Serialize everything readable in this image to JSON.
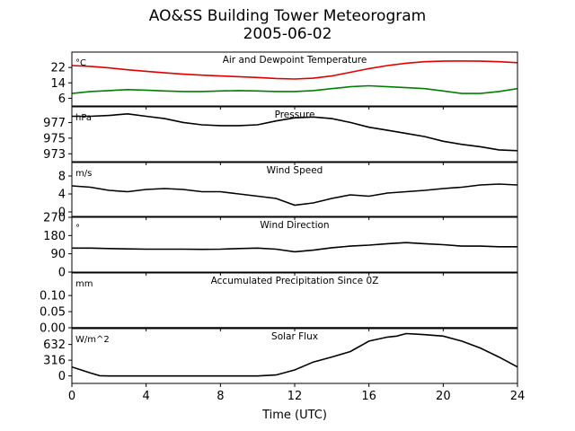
{
  "figure": {
    "title_line1": "AO&SS Building Tower Meteorogram",
    "title_line2": "2005-06-02",
    "xlabel": "Time (UTC)"
  },
  "chart_data": [
    {
      "type": "line",
      "title": "Air and Dewpoint Temperature",
      "unit": "°C",
      "xlim": [
        0,
        24
      ],
      "ylim": [
        2,
        30
      ],
      "yticks": [
        6,
        14,
        22
      ],
      "series": [
        {
          "color": "#e00000",
          "x": [
            0,
            1,
            2,
            3,
            4,
            5,
            6,
            7,
            8,
            9,
            10,
            11,
            12,
            13,
            14,
            15,
            16,
            17,
            18,
            19,
            20,
            21,
            22,
            23,
            24
          ],
          "y": [
            23,
            22.6,
            21.8,
            20.8,
            20.0,
            19.2,
            18.5,
            18.0,
            17.6,
            17.2,
            16.8,
            16.3,
            16.0,
            16.4,
            17.6,
            19.5,
            21.4,
            23.0,
            24.2,
            25.0,
            25.3,
            25.4,
            25.3,
            25.0,
            24.5
          ]
        },
        {
          "color": "#008000",
          "x": [
            0,
            1,
            2,
            3,
            4,
            5,
            6,
            7,
            8,
            9,
            10,
            11,
            12,
            13,
            14,
            15,
            16,
            17,
            18,
            19,
            20,
            21,
            22,
            23,
            24
          ],
          "y": [
            8.5,
            9.5,
            10.0,
            10.5,
            10.2,
            9.8,
            9.5,
            9.5,
            9.8,
            10.0,
            9.8,
            9.5,
            9.5,
            10.0,
            11.0,
            12.0,
            12.5,
            12.0,
            11.5,
            11.0,
            9.8,
            8.5,
            8.5,
            9.5,
            11.0
          ]
        }
      ]
    },
    {
      "type": "line",
      "title": "Pressure",
      "unit": "hPa",
      "xlim": [
        0,
        24
      ],
      "ylim": [
        972,
        979
      ],
      "yticks": [
        973,
        975,
        977
      ],
      "series": [
        {
          "color": "#000000",
          "x": [
            0,
            1,
            2,
            3,
            4,
            5,
            6,
            7,
            8,
            9,
            10,
            11,
            12,
            13,
            14,
            15,
            16,
            17,
            18,
            19,
            20,
            21,
            22,
            23,
            24
          ],
          "y": [
            977.8,
            977.8,
            977.9,
            978.1,
            977.8,
            977.5,
            977.0,
            976.7,
            976.6,
            976.6,
            976.7,
            977.2,
            977.6,
            977.7,
            977.5,
            977.0,
            976.4,
            976.0,
            975.6,
            975.2,
            974.6,
            974.2,
            973.9,
            973.5,
            973.4
          ]
        }
      ]
    },
    {
      "type": "line",
      "title": "Wind Speed",
      "unit": "m/s",
      "xlim": [
        0,
        24
      ],
      "ylim": [
        -1,
        11
      ],
      "yticks": [
        0,
        4,
        8
      ],
      "series": [
        {
          "color": "#000000",
          "x": [
            0,
            1,
            2,
            3,
            4,
            5,
            6,
            7,
            8,
            9,
            10,
            11,
            12,
            13,
            14,
            15,
            16,
            17,
            18,
            19,
            20,
            21,
            22,
            23,
            24
          ],
          "y": [
            5.8,
            5.5,
            4.8,
            4.5,
            5.0,
            5.2,
            5.0,
            4.5,
            4.5,
            4.0,
            3.5,
            3.0,
            1.5,
            2.0,
            3.0,
            3.8,
            3.5,
            4.2,
            4.5,
            4.8,
            5.2,
            5.5,
            6.0,
            6.2,
            6.0
          ]
        }
      ]
    },
    {
      "type": "line",
      "title": "Wind Direction",
      "unit": "°",
      "xlim": [
        0,
        24
      ],
      "ylim": [
        0,
        270
      ],
      "yticks": [
        0,
        90,
        180,
        270
      ],
      "series": [
        {
          "color": "#000000",
          "x": [
            0,
            1,
            2,
            3,
            4,
            5,
            6,
            7,
            8,
            9,
            10,
            11,
            12,
            13,
            14,
            15,
            16,
            17,
            18,
            19,
            20,
            21,
            22,
            23,
            24
          ],
          "y": [
            118,
            118,
            116,
            114,
            113,
            113,
            113,
            112,
            113,
            116,
            118,
            113,
            100,
            108,
            120,
            128,
            133,
            140,
            145,
            140,
            135,
            128,
            128,
            125,
            125
          ]
        }
      ]
    },
    {
      "type": "line",
      "title": "Accumulated Precipitation Since 0Z",
      "unit": "mm",
      "xlim": [
        0,
        24
      ],
      "ylim": [
        0,
        0.17
      ],
      "yticks": [
        0.0,
        0.05,
        0.1
      ],
      "series": [
        {
          "color": "#000000",
          "x": [
            0,
            24
          ],
          "y": [
            0,
            0
          ]
        }
      ]
    },
    {
      "type": "line",
      "title": "Solar Flux",
      "unit": "W/m^2",
      "xlim": [
        0,
        24
      ],
      "ylim": [
        -150,
        950
      ],
      "yticks": [
        0,
        316,
        632
      ],
      "series": [
        {
          "color": "#000000",
          "x": [
            0,
            0.5,
            1,
            1.5,
            2,
            4,
            6,
            8,
            10,
            11,
            12,
            13,
            14,
            15,
            16,
            16.5,
            17,
            17.5,
            18,
            18.5,
            19,
            20,
            21,
            22,
            23,
            24
          ],
          "y": [
            180,
            120,
            60,
            5,
            0,
            0,
            0,
            0,
            0,
            20,
            120,
            280,
            380,
            490,
            700,
            740,
            780,
            800,
            850,
            840,
            830,
            800,
            700,
            560,
            380,
            180
          ]
        }
      ]
    }
  ]
}
